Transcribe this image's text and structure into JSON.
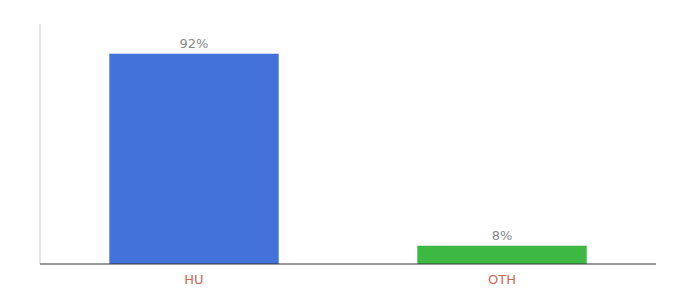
{
  "chart_data": {
    "type": "bar",
    "categories": [
      "HU",
      "OTH"
    ],
    "values": [
      92,
      8
    ],
    "value_labels": [
      "92%",
      "8%"
    ],
    "colors": [
      "#4472db",
      "#3cb843"
    ],
    "ylim": [
      0,
      105
    ],
    "data_labels": true,
    "tick_labels": "x",
    "grid": false
  }
}
